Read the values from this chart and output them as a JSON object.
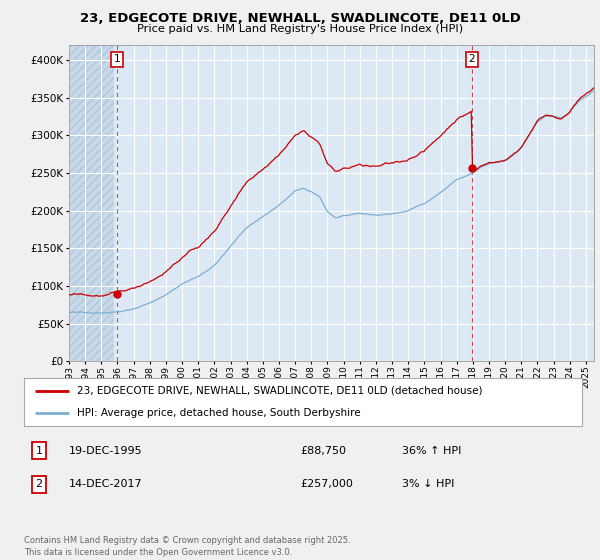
{
  "title": "23, EDGECOTE DRIVE, NEWHALL, SWADLINCOTE, DE11 0LD",
  "subtitle": "Price paid vs. HM Land Registry's House Price Index (HPI)",
  "legend_label1": "23, EDGECOTE DRIVE, NEWHALL, SWADLINCOTE, DE11 0LD (detached house)",
  "legend_label2": "HPI: Average price, detached house, South Derbyshire",
  "note1_num": "1",
  "note1_date": "19-DEC-1995",
  "note1_price": "£88,750",
  "note1_hpi": "36% ↑ HPI",
  "note2_num": "2",
  "note2_date": "14-DEC-2017",
  "note2_price": "£257,000",
  "note2_hpi": "3% ↓ HPI",
  "copyright": "Contains HM Land Registry data © Crown copyright and database right 2025.\nThis data is licensed under the Open Government Licence v3.0.",
  "line1_color": "#cc0000",
  "line2_color": "#7bafd4",
  "bg_color": "#f0f0f0",
  "plot_bg": "#dce9f5",
  "grid_color": "#ffffff",
  "hatch_color": "#c8d8e8",
  "ylim": [
    0,
    420000
  ],
  "yticks": [
    0,
    50000,
    100000,
    150000,
    200000,
    250000,
    300000,
    350000,
    400000
  ],
  "purchase1_x": 1995.96,
  "purchase1_y": 88750,
  "purchase2_x": 2017.95,
  "purchase2_y": 257000,
  "xmin": 1993.0,
  "xmax": 2025.5
}
